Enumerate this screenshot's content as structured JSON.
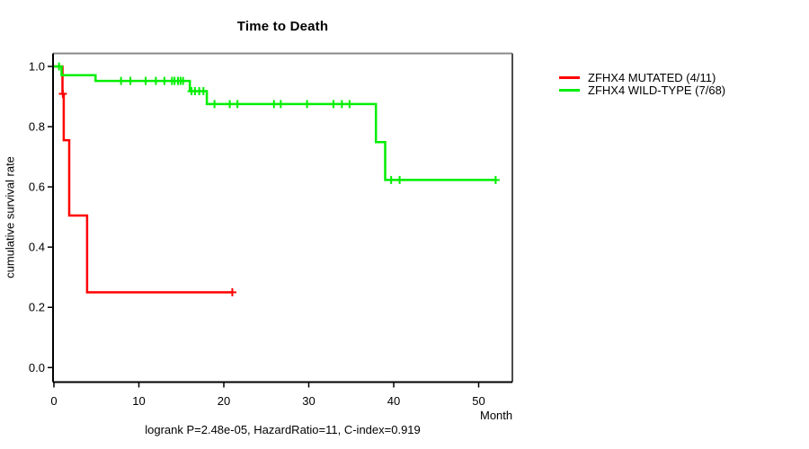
{
  "chart_data": {
    "type": "line",
    "subtype": "kaplan-meier-step-survival",
    "title": "Time to Death",
    "xlabel": "Month",
    "ylabel": "cumulative survival rate",
    "xlim": [
      0,
      54
    ],
    "ylim": [
      -0.05,
      1.04
    ],
    "grid": "off",
    "legend_position": "right-outside-top",
    "x_ticks": [
      0,
      10,
      20,
      30,
      40,
      50
    ],
    "x_tick_labels": [
      "0",
      "10",
      "20",
      "30",
      "40",
      "50"
    ],
    "y_ticks": [
      0.0,
      0.2,
      0.4,
      0.6,
      0.8,
      1.0
    ],
    "y_tick_labels": [
      "0.0",
      "0.2",
      "0.4",
      "0.6",
      "0.8",
      "1.0"
    ],
    "series": [
      {
        "name": "ZFHX4 MUTATED (4/11)",
        "color": "#ff0000",
        "steps": [
          [
            0,
            1.0
          ],
          [
            1.0,
            1.0
          ],
          [
            1.0,
            0.909
          ],
          [
            1.15,
            0.909
          ],
          [
            1.15,
            0.755
          ],
          [
            1.8,
            0.755
          ],
          [
            1.8,
            0.505
          ],
          [
            3.9,
            0.505
          ],
          [
            3.9,
            0.25
          ],
          [
            21.0,
            0.25
          ]
        ],
        "censor_marks": [
          [
            1.05,
            0.909
          ],
          [
            21.0,
            0.25
          ]
        ]
      },
      {
        "name": "ZFHX4 WILD-TYPE (7/68)",
        "color": "#00ee00",
        "steps": [
          [
            0,
            1.0
          ],
          [
            0.9,
            1.0
          ],
          [
            0.9,
            0.971
          ],
          [
            4.9,
            0.971
          ],
          [
            4.9,
            0.952
          ],
          [
            16.0,
            0.952
          ],
          [
            16.0,
            0.918
          ],
          [
            18.0,
            0.918
          ],
          [
            18.0,
            0.875
          ],
          [
            37.9,
            0.875
          ],
          [
            37.9,
            0.749
          ],
          [
            39.0,
            0.749
          ],
          [
            39.0,
            0.623
          ],
          [
            52.0,
            0.623
          ]
        ],
        "censor_marks": [
          [
            0.6,
            1.0
          ],
          [
            7.9,
            0.952
          ],
          [
            9.0,
            0.952
          ],
          [
            10.8,
            0.952
          ],
          [
            12.0,
            0.952
          ],
          [
            13.0,
            0.952
          ],
          [
            13.9,
            0.952
          ],
          [
            14.2,
            0.952
          ],
          [
            14.6,
            0.952
          ],
          [
            14.9,
            0.952
          ],
          [
            15.2,
            0.952
          ],
          [
            16.2,
            0.918
          ],
          [
            16.6,
            0.918
          ],
          [
            17.1,
            0.918
          ],
          [
            17.6,
            0.918
          ],
          [
            18.9,
            0.875
          ],
          [
            20.7,
            0.875
          ],
          [
            21.6,
            0.875
          ],
          [
            25.9,
            0.875
          ],
          [
            26.7,
            0.875
          ],
          [
            29.8,
            0.875
          ],
          [
            32.9,
            0.875
          ],
          [
            33.9,
            0.875
          ],
          [
            34.8,
            0.875
          ],
          [
            39.7,
            0.623
          ],
          [
            40.7,
            0.623
          ],
          [
            52.0,
            0.623
          ]
        ]
      }
    ],
    "annotation": "logrank P=2.48e-05, HazardRatio=11, C-index=0.919"
  }
}
